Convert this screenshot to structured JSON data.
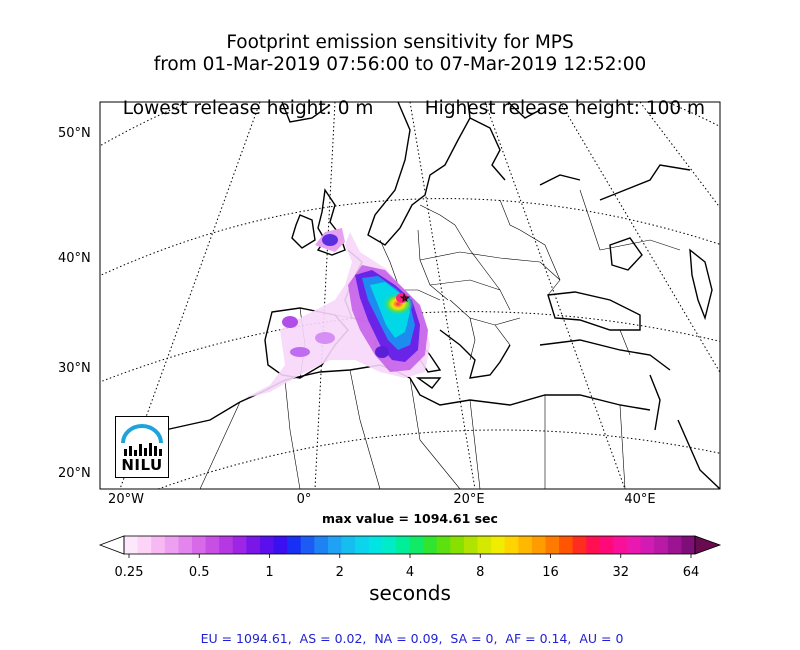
{
  "title": {
    "line1": "Footprint emission sensitivity for MPS",
    "line2": "from 01-Mar-2019 07:56:00 to 07-Mar-2019 12:52:00",
    "line3_left": "Lowest release height: 0 m",
    "line3_right": "Highest release height: 100 m"
  },
  "chart_data": {
    "type": "heatmap",
    "title": "Footprint emission sensitivity for MPS",
    "lat_tick_labels": [
      "50°N",
      "40°N",
      "30°N",
      "20°N"
    ],
    "lon_tick_labels": [
      "20°W",
      "0°",
      "20°E",
      "40°E"
    ],
    "max_value_label": "max value = 1094.61 sec",
    "colorbar": {
      "tick_labels": [
        "0.25",
        "0.5",
        "1",
        "2",
        "4",
        "8",
        "16",
        "32",
        "64"
      ],
      "label": "seconds",
      "scale": "log"
    },
    "region_totals": {
      "EU": 1094.61,
      "AS": 0.02,
      "NA": 0.09,
      "SA": 0,
      "AF": 0.14,
      "AU": 0
    },
    "region_totals_text": "EU = 1094.61,  AS = 0.02,  NA = 0.09,  SA = 0,  AF = 0.14,  AU = 0"
  },
  "logo": {
    "text": "NILU",
    "accent": "#1ea3dc"
  }
}
